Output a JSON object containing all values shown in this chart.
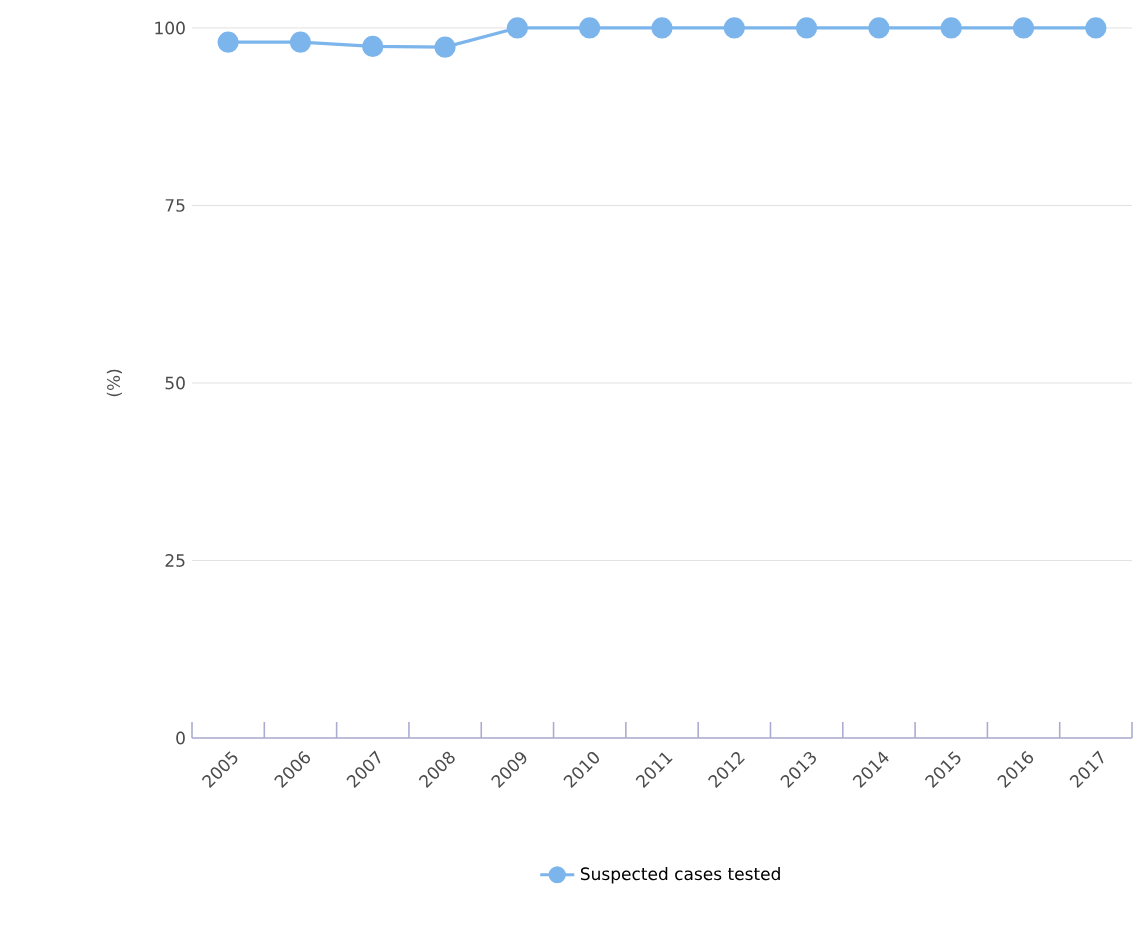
{
  "chart_data": {
    "type": "line",
    "ylabel": "(%)",
    "categories": [
      "2005",
      "2006",
      "2007",
      "2008",
      "2009",
      "2010",
      "2011",
      "2012",
      "2013",
      "2014",
      "2015",
      "2016",
      "2017"
    ],
    "series": [
      {
        "name": "Suspected cases tested",
        "color": "#7cb5ec",
        "values": [
          98,
          98,
          97.4,
          97.3,
          100,
          100,
          100,
          100,
          100,
          100,
          100,
          100,
          100
        ]
      }
    ],
    "ylim": [
      0,
      100
    ],
    "yticks": [
      0,
      25,
      50,
      75,
      100
    ],
    "grid": "y",
    "legend": "bottom",
    "marker": "circle",
    "line_style": "solid"
  }
}
